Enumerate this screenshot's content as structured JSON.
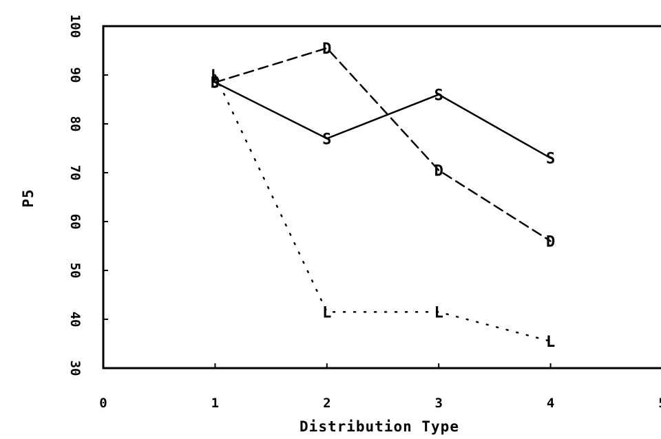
{
  "chart_data": {
    "type": "line",
    "title": "",
    "xlabel": "Distribution Type",
    "ylabel": "P5",
    "xlim": [
      0,
      5
    ],
    "ylim": [
      30,
      100
    ],
    "xticks": [
      0,
      1,
      2,
      3,
      4,
      5
    ],
    "yticks": [
      30,
      40,
      50,
      60,
      70,
      80,
      90,
      100
    ],
    "grid": false,
    "series": [
      {
        "marker": "S",
        "style": "solid",
        "x": [
          1,
          2,
          3,
          4
        ],
        "y": [
          88.5,
          77,
          86,
          73
        ]
      },
      {
        "marker": "D",
        "style": "dashed",
        "x": [
          1,
          2,
          3,
          4
        ],
        "y": [
          88.5,
          95.5,
          70.5,
          56
        ]
      },
      {
        "marker": "L",
        "style": "dotted",
        "x": [
          1,
          2,
          3,
          4
        ],
        "y": [
          90,
          41.5,
          41.5,
          35.5
        ]
      }
    ]
  }
}
